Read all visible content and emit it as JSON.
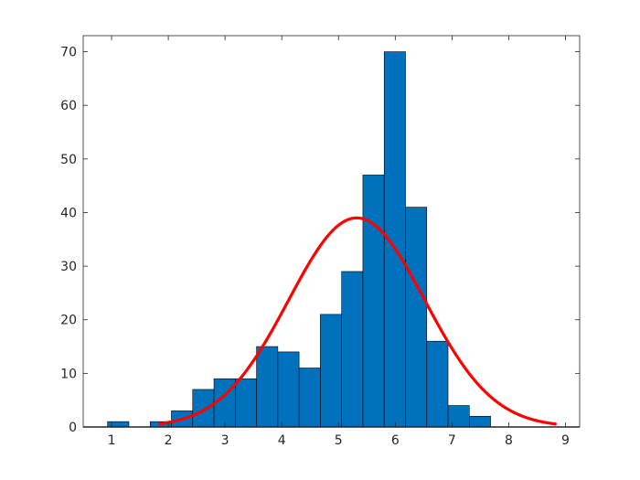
{
  "chart_data": {
    "type": "bar",
    "subtype": "histogram-with-fitted-curve",
    "title": "",
    "xlabel": "",
    "ylabel": "",
    "xlim": [
      0.5,
      9.25
    ],
    "ylim": [
      0,
      73
    ],
    "xticks": [
      1,
      2,
      3,
      4,
      5,
      6,
      7,
      8,
      9
    ],
    "yticks": [
      0,
      10,
      20,
      30,
      40,
      50,
      60,
      70
    ],
    "grid": false,
    "legend": "none",
    "bin_edges": [
      0.93,
      1.305,
      1.68,
      2.055,
      2.43,
      2.805,
      3.18,
      3.555,
      3.93,
      4.305,
      4.68,
      5.055,
      5.43,
      5.805,
      6.18,
      6.555,
      6.93,
      7.305,
      7.68
    ],
    "series": [
      {
        "values": [
          1,
          0,
          1,
          3,
          7,
          9,
          9,
          15,
          14,
          11,
          21,
          29,
          47,
          70,
          41,
          16,
          4,
          2
        ],
        "color": "#0072BD"
      }
    ],
    "fit_curve": {
      "distribution": "normal",
      "mean": 5.32,
      "std": 1.2,
      "peak": 39,
      "x_range": [
        1.85,
        8.82
      ],
      "color": "#FF0000"
    }
  }
}
